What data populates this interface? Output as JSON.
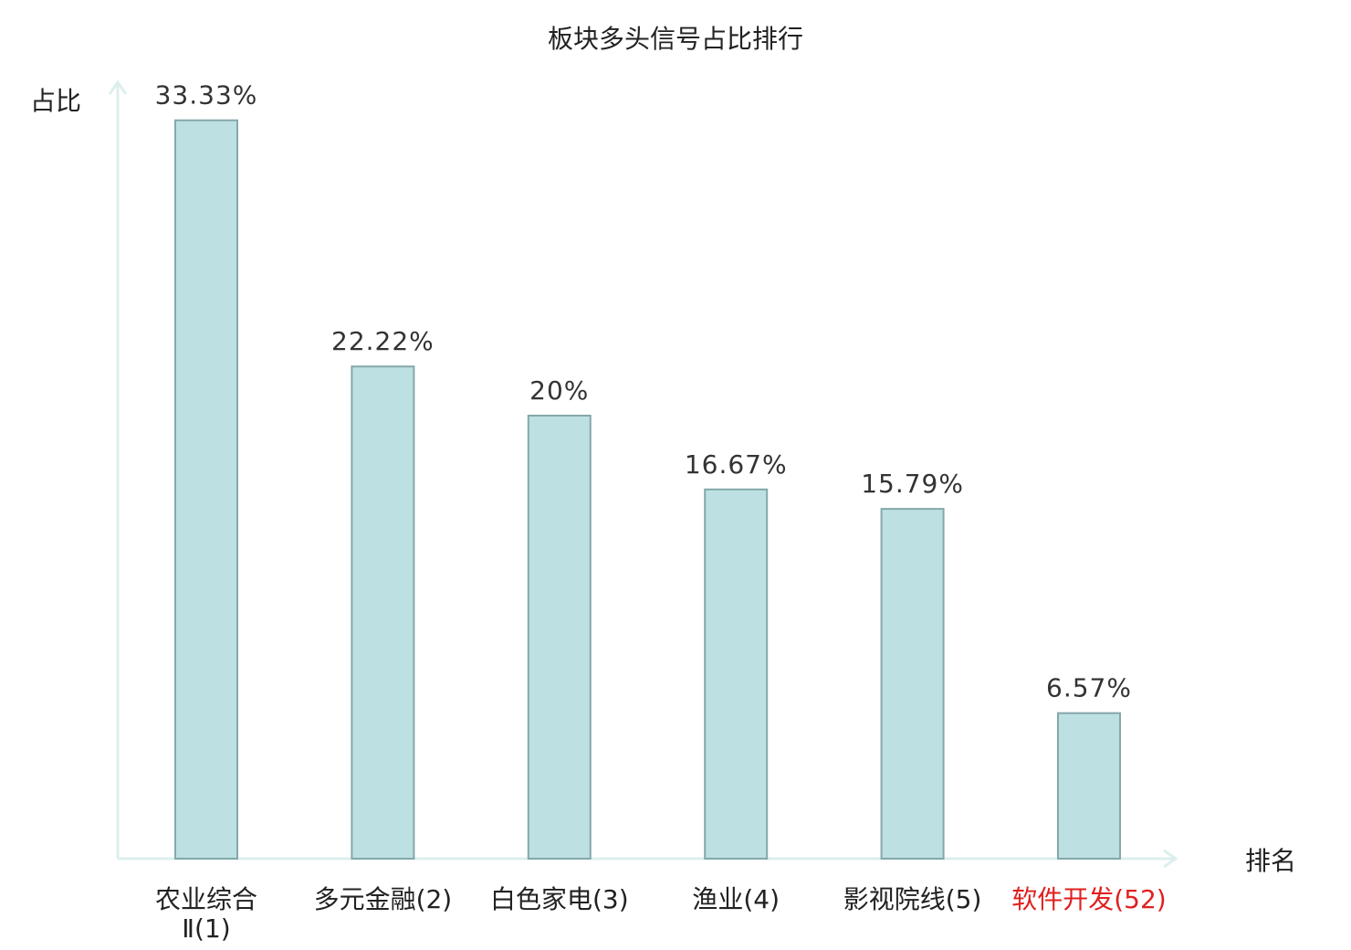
{
  "chart_data": {
    "type": "bar",
    "title": "板块多头信号占比排行",
    "ylabel": "占比",
    "xlabel": "排名",
    "ylim": [
      0,
      35
    ],
    "grid": false,
    "categories": [
      {
        "lines": [
          "农业综合",
          "Ⅱ(1)"
        ],
        "highlight": false
      },
      {
        "lines": [
          "多元金融(2)"
        ],
        "highlight": false
      },
      {
        "lines": [
          "白色家电(3)"
        ],
        "highlight": false
      },
      {
        "lines": [
          "渔业(4)"
        ],
        "highlight": false
      },
      {
        "lines": [
          "影视院线(5)"
        ],
        "highlight": false
      },
      {
        "lines": [
          "软件开发(52)"
        ],
        "highlight": true
      }
    ],
    "values": [
      33.33,
      22.22,
      20,
      16.67,
      15.79,
      6.57
    ],
    "value_labels": [
      "33.33%",
      "22.22%",
      "20%",
      "16.67%",
      "15.79%",
      "6.57%"
    ]
  },
  "colors": {
    "bar_fill": "#bde0e2",
    "bar_stroke": "#85a8aa",
    "axis": "#dcefed",
    "text": "#222222",
    "highlight": "#e02020"
  }
}
